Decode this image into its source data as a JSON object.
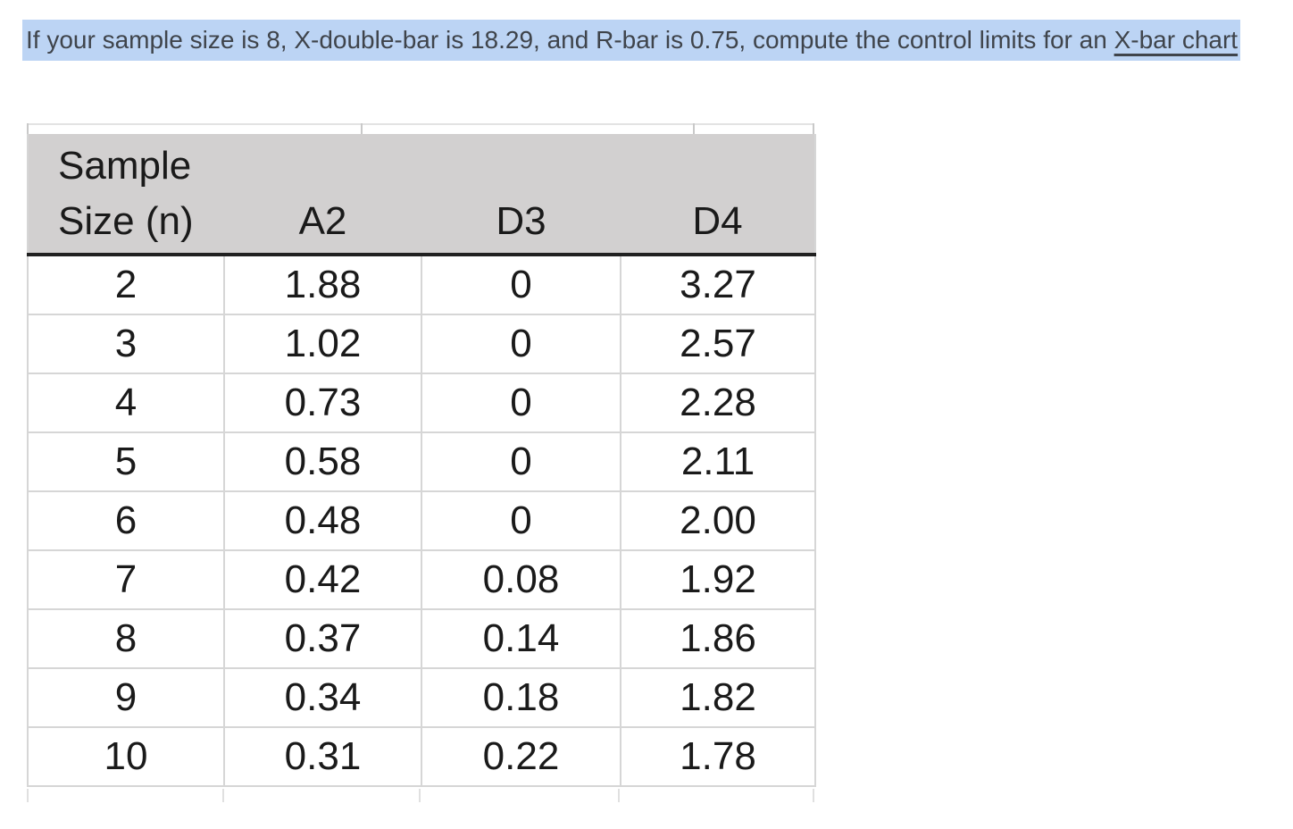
{
  "question": {
    "text": "If your sample size is 8, X-double-bar is 18.29, and R-bar is 0.75, compute the control limits for an ",
    "linked_text": "X-bar chart"
  },
  "table": {
    "headers": [
      "Sample Size (n)",
      "A2",
      "D3",
      "D4"
    ],
    "rows": [
      [
        "2",
        "1.88",
        "0",
        "3.27"
      ],
      [
        "3",
        "1.02",
        "0",
        "2.57"
      ],
      [
        "4",
        "0.73",
        "0",
        "2.28"
      ],
      [
        "5",
        "0.58",
        "0",
        "2.11"
      ],
      [
        "6",
        "0.48",
        "0",
        "2.00"
      ],
      [
        "7",
        "0.42",
        "0.08",
        "1.92"
      ],
      [
        "8",
        "0.37",
        "0.14",
        "1.86"
      ],
      [
        "9",
        "0.34",
        "0.18",
        "1.82"
      ],
      [
        "10",
        "0.31",
        "0.22",
        "1.78"
      ]
    ]
  },
  "colors": {
    "highlight": "#bcd4f4",
    "question-text": "#3f444b",
    "table-header-bg": "#d2d0d0",
    "table-gridline": "#d6d6d6",
    "table-border-heavy": "#212121",
    "table-text": "#1a1a1a"
  }
}
